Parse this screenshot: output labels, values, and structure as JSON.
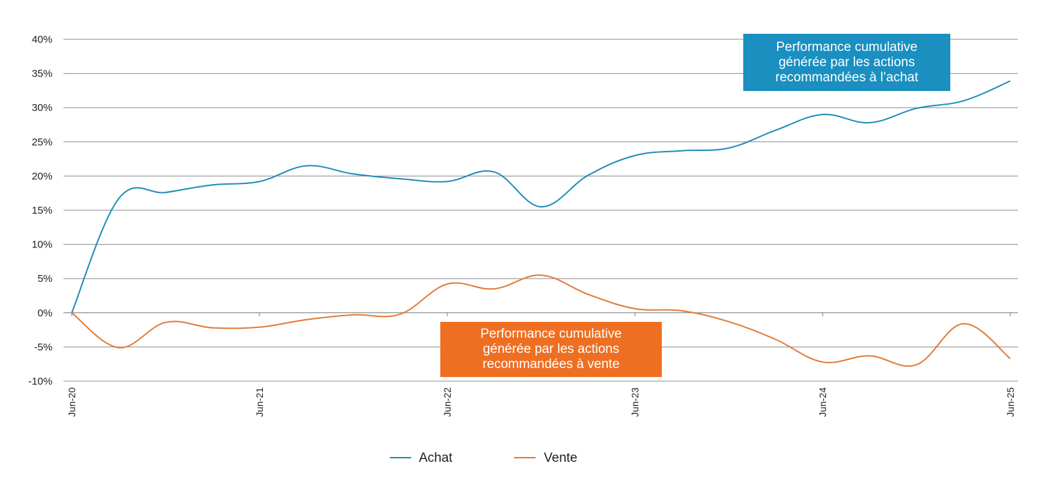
{
  "chart_data": {
    "type": "line",
    "x": [
      "Jun-20",
      "Sep-20",
      "Dec-20",
      "Mar-21",
      "Jun-21",
      "Sep-21",
      "Dec-21",
      "Mar-22",
      "Jun-22",
      "Sep-22",
      "Dec-22",
      "Mar-23",
      "Jun-23",
      "Sep-23",
      "Dec-23",
      "Mar-24",
      "Jun-24",
      "Sep-24",
      "Dec-24",
      "Mar-25",
      "Jun-25"
    ],
    "xticks": [
      "Jun-20",
      "Jun-21",
      "Jun-22",
      "Jun-23",
      "Jun-24",
      "Jun-25"
    ],
    "series": [
      {
        "name": "Achat",
        "color": "#1f8db5",
        "values": [
          0.0,
          16.7,
          17.6,
          18.7,
          19.2,
          21.5,
          20.3,
          19.6,
          19.2,
          20.6,
          15.5,
          20.1,
          23.0,
          23.7,
          24.1,
          26.7,
          29.0,
          27.8,
          29.9,
          31.0,
          33.9
        ]
      },
      {
        "name": "Vente",
        "color": "#e07b39",
        "values": [
          0.0,
          -5.1,
          -1.4,
          -2.2,
          -2.1,
          -1.0,
          -0.3,
          -0.2,
          4.2,
          3.5,
          5.5,
          2.7,
          0.6,
          0.3,
          -1.3,
          -3.9,
          -7.2,
          -6.3,
          -7.6,
          -1.6,
          -6.7
        ]
      }
    ],
    "yticks": [
      "40%",
      "35%",
      "30%",
      "25%",
      "20%",
      "15%",
      "10%",
      "5%",
      "0%",
      "-5%",
      "-10%"
    ],
    "ylim": [
      -10,
      40
    ],
    "grid": true,
    "legend_position": "bottom-center",
    "annotations": [
      {
        "text": "Performance cumulative\ngénérée par les actions\nrecommandées à l’achat",
        "color": "#1a8fc0",
        "text_color": "#ffffff"
      },
      {
        "text": "Performance cumulative\ngénérée par les actions\nrecommandées à vente",
        "color": "#ee6f22",
        "text_color": "#ffffff"
      }
    ]
  }
}
